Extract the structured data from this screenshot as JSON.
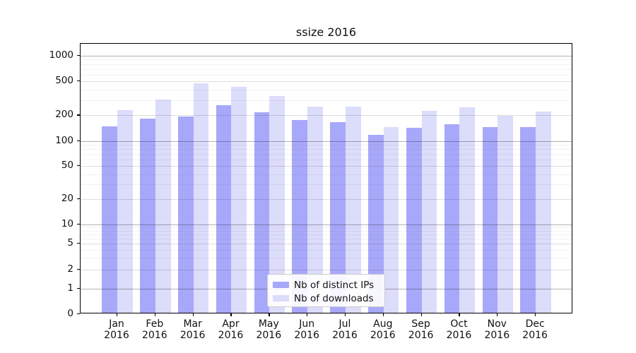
{
  "title": "ssize 2016",
  "chart_data": {
    "type": "bar",
    "title": "ssize 2016",
    "categories": [
      "Jan 2016",
      "Feb 2016",
      "Mar 2016",
      "Apr 2016",
      "May 2016",
      "Jun 2016",
      "Jul 2016",
      "Aug 2016",
      "Sep 2016",
      "Oct 2016",
      "Nov 2016",
      "Dec 2016"
    ],
    "series": [
      {
        "name": "Nb of distinct IPs",
        "color": "#a8a8fa",
        "values": [
          143,
          176,
          188,
          255,
          209,
          170,
          160,
          113,
          138,
          152,
          140,
          140
        ]
      },
      {
        "name": "Nb of downloads",
        "color": "#dcdcfb",
        "values": [
          222,
          293,
          457,
          415,
          324,
          245,
          245,
          140,
          216,
          238,
          190,
          215
        ]
      }
    ],
    "xlabel": "",
    "ylabel": "",
    "yscale": "symlog",
    "ylim": [
      0,
      1400
    ],
    "yticks": {
      "values": [
        0,
        1,
        2,
        5,
        10,
        20,
        50,
        100,
        200,
        500,
        1000
      ],
      "labels": [
        "0",
        "1",
        "2",
        "5",
        "10",
        "20",
        "50",
        "100",
        "200",
        "500",
        "1000"
      ]
    },
    "grid": "on",
    "legend_position": "lower-center"
  }
}
